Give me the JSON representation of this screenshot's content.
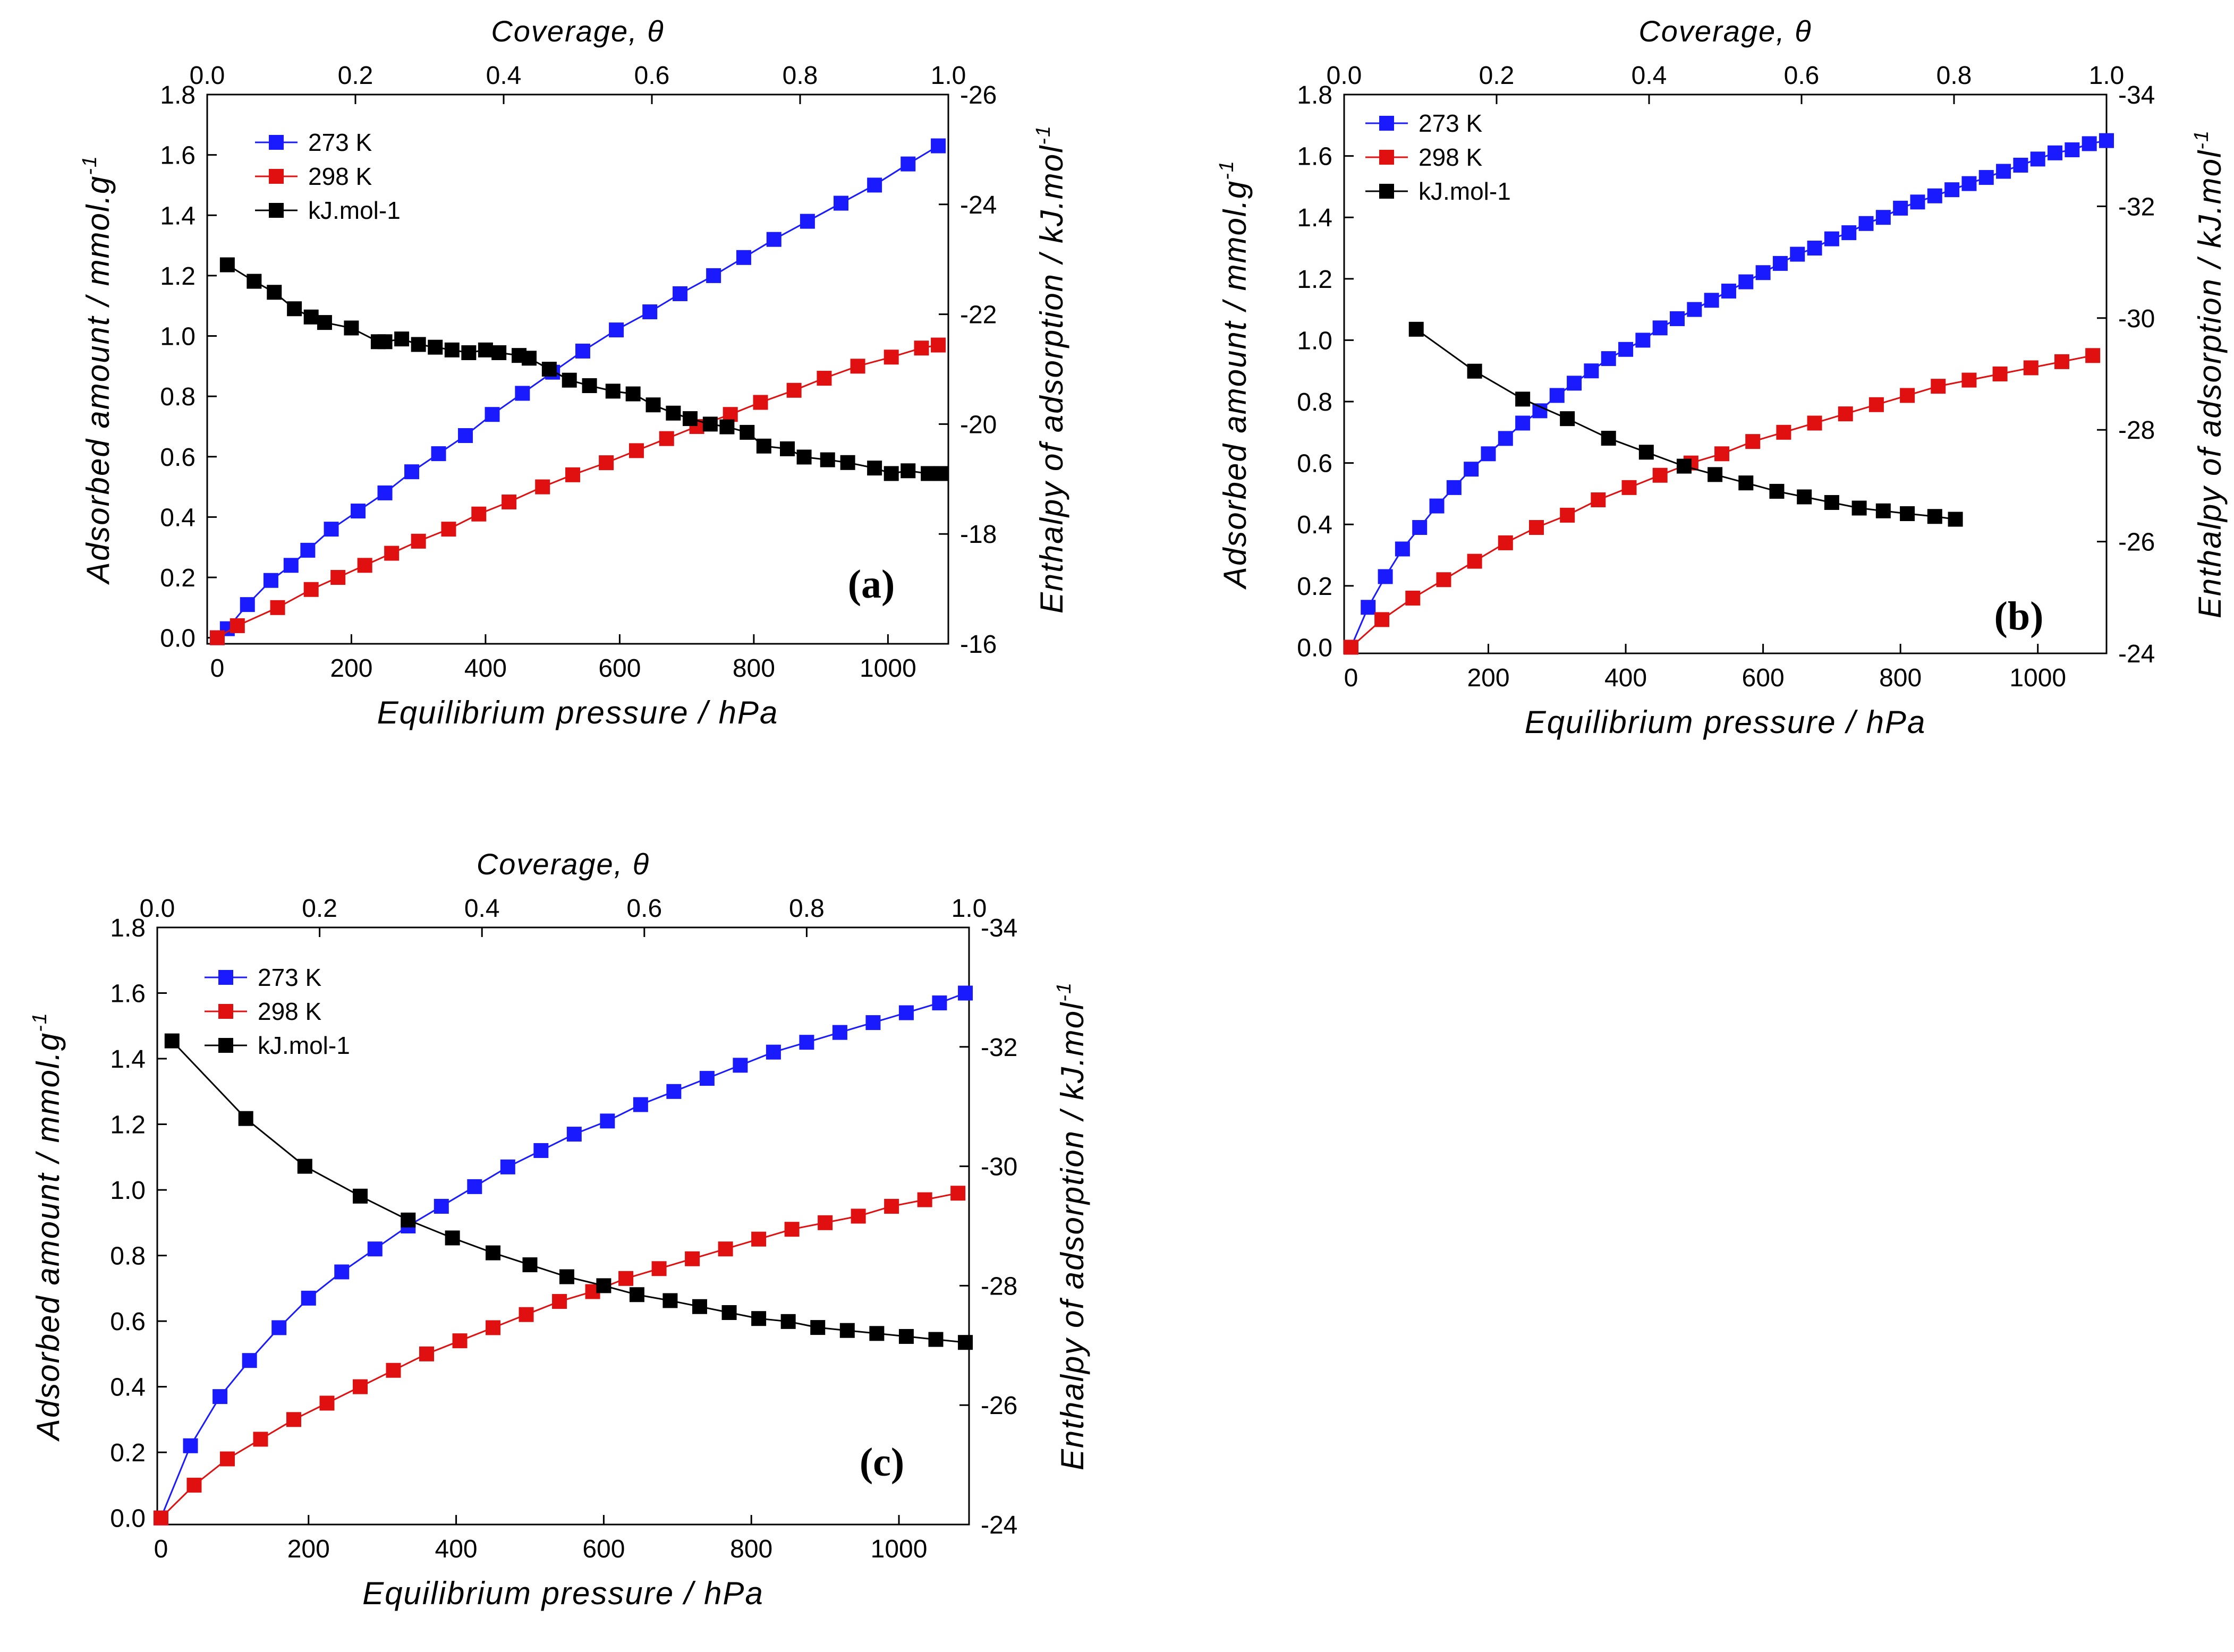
{
  "chart_data": [
    {
      "type": "scatter",
      "panel": "a",
      "label": "(a)",
      "xlabel": "Equilibrium pressure / hPa",
      "ylabel": "Adsorbed amount / mmol.g",
      "ylabel_sup": "-1",
      "y2label": "Enthalpy of adsorption / kJ.mol",
      "y2label_sup": "-1",
      "x2label": "Coverage, θ",
      "xlim": [
        -15,
        1090
      ],
      "ylim": [
        -0.02,
        1.8
      ],
      "y2lim": [
        -16,
        -26
      ],
      "x2lim": [
        0,
        1
      ],
      "xticks": [
        "0",
        "200",
        "400",
        "600",
        "800",
        "1000"
      ],
      "yticks": [
        "0.0",
        "0.2",
        "0.4",
        "0.6",
        "0.8",
        "1.0",
        "1.2",
        "1.4",
        "1.6",
        "1.8"
      ],
      "y2ticks": [
        "-16",
        "-18",
        "-20",
        "-22",
        "-24",
        "-26"
      ],
      "x2ticks": [
        "0.0",
        "0.2",
        "0.4",
        "0.6",
        "0.8",
        "1.0"
      ],
      "legend": [
        "273 K",
        "298 K",
        "kJ.mol-1"
      ],
      "series": [
        {
          "name": "273 K",
          "color": "#1a1aff",
          "axis": "y",
          "x": [
            0,
            15,
            45,
            80,
            110,
            135,
            170,
            210,
            250,
            290,
            330,
            370,
            410,
            455,
            500,
            545,
            595,
            645,
            690,
            740,
            785,
            830,
            880,
            930,
            980,
            1030,
            1075
          ],
          "y": [
            0.0,
            0.03,
            0.11,
            0.19,
            0.24,
            0.29,
            0.36,
            0.42,
            0.48,
            0.55,
            0.61,
            0.67,
            0.74,
            0.81,
            0.88,
            0.95,
            1.02,
            1.08,
            1.14,
            1.2,
            1.26,
            1.32,
            1.38,
            1.44,
            1.5,
            1.57,
            1.63
          ]
        },
        {
          "name": "298 K",
          "color": "#e01010",
          "axis": "y",
          "x": [
            0,
            30,
            90,
            140,
            180,
            220,
            260,
            300,
            345,
            390,
            435,
            485,
            530,
            580,
            625,
            670,
            715,
            765,
            810,
            860,
            905,
            955,
            1005,
            1050,
            1075
          ],
          "y": [
            0.0,
            0.04,
            0.1,
            0.16,
            0.2,
            0.24,
            0.28,
            0.32,
            0.36,
            0.41,
            0.45,
            0.5,
            0.54,
            0.58,
            0.62,
            0.66,
            0.7,
            0.74,
            0.78,
            0.82,
            0.86,
            0.9,
            0.93,
            0.96,
            0.97
          ]
        },
        {
          "name": "kJ.mol-1",
          "color": "#000000",
          "axis": "y2",
          "x": [
            15,
            55,
            85,
            115,
            140,
            160,
            200,
            240,
            250,
            275,
            300,
            325,
            350,
            375,
            400,
            420,
            450,
            465,
            495,
            525,
            555,
            590,
            620,
            650,
            680,
            705,
            735,
            760,
            790,
            815,
            850,
            875,
            910,
            940,
            980,
            1005,
            1030,
            1060,
            1080
          ],
          "y": [
            -22.9,
            -22.6,
            -22.4,
            -22.1,
            -21.95,
            -21.85,
            -21.75,
            -21.5,
            -21.5,
            -21.55,
            -21.45,
            -21.4,
            -21.35,
            -21.3,
            -21.35,
            -21.3,
            -21.25,
            -21.2,
            -21.0,
            -20.8,
            -20.7,
            -20.6,
            -20.55,
            -20.35,
            -20.2,
            -20.1,
            -20.0,
            -19.95,
            -19.85,
            -19.6,
            -19.55,
            -19.4,
            -19.35,
            -19.3,
            -19.2,
            -19.1,
            -19.15,
            -19.1,
            -19.1
          ]
        }
      ]
    },
    {
      "type": "scatter",
      "panel": "b",
      "label": "(b)",
      "xlabel": "Equilibrium pressure / hPa",
      "ylabel": "Adsorbed amount / mmol.g",
      "ylabel_sup": "-1",
      "y2label": "Enthalpy of adsorption / kJ.mol",
      "y2label_sup": "-1",
      "x2label": "Coverage, θ",
      "xlim": [
        -10,
        1100
      ],
      "ylim": [
        -0.02,
        1.8
      ],
      "y2lim": [
        -24,
        -34
      ],
      "x2lim": [
        0,
        1
      ],
      "xticks": [
        "0",
        "200",
        "400",
        "600",
        "800",
        "1000"
      ],
      "yticks": [
        "0.0",
        "0.2",
        "0.4",
        "0.6",
        "0.8",
        "1.0",
        "1.2",
        "1.4",
        "1.6",
        "1.8"
      ],
      "y2ticks": [
        "-24",
        "-26",
        "-28",
        "-30",
        "-32",
        "-34"
      ],
      "x2ticks": [
        "0.0",
        "0.2",
        "0.4",
        "0.6",
        "0.8",
        "1.0"
      ],
      "legend": [
        "273 K",
        "298 K",
        "kJ.mol-1"
      ],
      "series": [
        {
          "name": "273 K",
          "color": "#1a1aff",
          "axis": "y",
          "x": [
            0,
            25,
            50,
            75,
            100,
            125,
            150,
            175,
            200,
            225,
            250,
            275,
            300,
            325,
            350,
            375,
            400,
            425,
            450,
            475,
            500,
            525,
            550,
            575,
            600,
            625,
            650,
            675,
            700,
            725,
            750,
            775,
            800,
            825,
            850,
            875,
            900,
            925,
            950,
            975,
            1000,
            1025,
            1050,
            1075,
            1100
          ],
          "y": [
            0.0,
            0.13,
            0.23,
            0.32,
            0.39,
            0.46,
            0.52,
            0.58,
            0.63,
            0.68,
            0.73,
            0.77,
            0.82,
            0.86,
            0.9,
            0.94,
            0.97,
            1.0,
            1.04,
            1.07,
            1.1,
            1.13,
            1.16,
            1.19,
            1.22,
            1.25,
            1.28,
            1.3,
            1.33,
            1.35,
            1.38,
            1.4,
            1.43,
            1.45,
            1.47,
            1.49,
            1.51,
            1.53,
            1.55,
            1.57,
            1.59,
            1.61,
            1.62,
            1.64,
            1.65
          ]
        },
        {
          "name": "298 K",
          "color": "#e01010",
          "axis": "y",
          "x": [
            0,
            45,
            90,
            135,
            180,
            225,
            270,
            315,
            360,
            405,
            450,
            495,
            540,
            585,
            630,
            675,
            720,
            765,
            810,
            855,
            900,
            945,
            990,
            1035,
            1080
          ],
          "y": [
            0.0,
            0.09,
            0.16,
            0.22,
            0.28,
            0.34,
            0.39,
            0.43,
            0.48,
            0.52,
            0.56,
            0.6,
            0.63,
            0.67,
            0.7,
            0.73,
            0.76,
            0.79,
            0.82,
            0.85,
            0.87,
            0.89,
            0.91,
            0.93,
            0.95
          ]
        },
        {
          "name": "kJ.mol-1",
          "color": "#000000",
          "axis": "y2",
          "x": [
            95,
            180,
            250,
            315,
            375,
            430,
            485,
            530,
            575,
            620,
            660,
            700,
            740,
            775,
            810,
            850,
            880
          ],
          "y": [
            -29.8,
            -29.05,
            -28.55,
            -28.2,
            -27.85,
            -27.6,
            -27.35,
            -27.2,
            -27.05,
            -26.9,
            -26.8,
            -26.7,
            -26.6,
            -26.55,
            -26.5,
            -26.45,
            -26.4
          ]
        }
      ]
    },
    {
      "type": "scatter",
      "panel": "c",
      "label": "(c)",
      "xlabel": "Equilibrium pressure / hPa",
      "ylabel": "Adsorbed amount / mmol.g",
      "ylabel_sup": "-1",
      "y2label": "Enthalpy of adsorption / kJ.mol",
      "y2label_sup": "-1",
      "x2label": "Coverage, θ",
      "xlim": [
        -5,
        1095
      ],
      "ylim": [
        -0.02,
        1.8
      ],
      "y2lim": [
        -24,
        -34
      ],
      "x2lim": [
        0,
        1
      ],
      "xticks": [
        "0",
        "200",
        "400",
        "600",
        "800",
        "1000"
      ],
      "yticks": [
        "0.0",
        "0.2",
        "0.4",
        "0.6",
        "0.8",
        "1.0",
        "1.2",
        "1.4",
        "1.6",
        "1.8"
      ],
      "y2ticks": [
        "-24",
        "-26",
        "-28",
        "-30",
        "-32",
        "-34"
      ],
      "x2ticks": [
        "0.0",
        "0.2",
        "0.4",
        "0.6",
        "0.8",
        "1.0"
      ],
      "legend": [
        "273 K",
        "298 K",
        "kJ.mol-1"
      ],
      "series": [
        {
          "name": "273 K",
          "color": "#1a1aff",
          "axis": "y",
          "x": [
            0,
            40,
            80,
            120,
            160,
            200,
            245,
            290,
            335,
            380,
            425,
            470,
            515,
            560,
            605,
            650,
            695,
            740,
            785,
            830,
            875,
            920,
            965,
            1010,
            1055,
            1090
          ],
          "y": [
            0.0,
            0.22,
            0.37,
            0.48,
            0.58,
            0.67,
            0.75,
            0.82,
            0.89,
            0.95,
            1.01,
            1.07,
            1.12,
            1.17,
            1.21,
            1.26,
            1.3,
            1.34,
            1.38,
            1.42,
            1.45,
            1.48,
            1.51,
            1.54,
            1.57,
            1.6
          ]
        },
        {
          "name": "298 K",
          "color": "#e01010",
          "axis": "y",
          "x": [
            0,
            45,
            90,
            135,
            180,
            225,
            270,
            315,
            360,
            405,
            450,
            495,
            540,
            585,
            630,
            675,
            720,
            765,
            810,
            855,
            900,
            945,
            990,
            1035,
            1080
          ],
          "y": [
            0.0,
            0.1,
            0.18,
            0.24,
            0.3,
            0.35,
            0.4,
            0.45,
            0.5,
            0.54,
            0.58,
            0.62,
            0.66,
            0.69,
            0.73,
            0.76,
            0.79,
            0.82,
            0.85,
            0.88,
            0.9,
            0.92,
            0.95,
            0.97,
            0.99
          ]
        },
        {
          "name": "kJ.mol-1",
          "color": "#000000",
          "axis": "y2",
          "x": [
            15,
            115,
            195,
            270,
            335,
            395,
            450,
            500,
            550,
            600,
            645,
            690,
            730,
            770,
            810,
            850,
            890,
            930,
            970,
            1010,
            1050,
            1090
          ],
          "y": [
            -32.1,
            -30.8,
            -30.0,
            -29.5,
            -29.1,
            -28.8,
            -28.55,
            -28.35,
            -28.15,
            -28.0,
            -27.85,
            -27.75,
            -27.65,
            -27.55,
            -27.45,
            -27.4,
            -27.3,
            -27.25,
            -27.2,
            -27.15,
            -27.1,
            -27.05
          ]
        }
      ]
    }
  ]
}
